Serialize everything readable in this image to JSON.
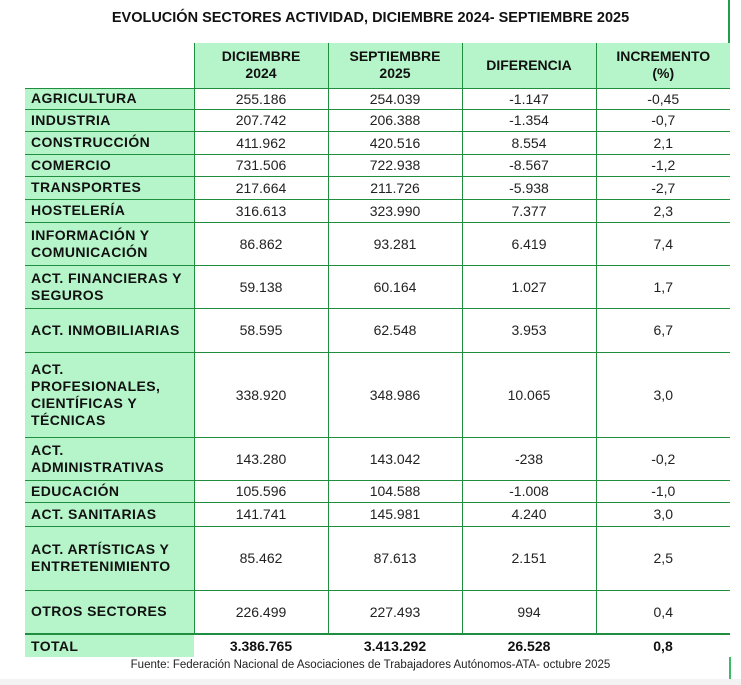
{
  "title": "EVOLUCIÓN SECTORES ACTIVIDAD, DICIEMBRE 2024- SEPTIEMBRE 2025",
  "table": {
    "headers": [
      "",
      "DICIEMBRE 2024",
      "SEPTIEMBRE 2025",
      "DIFERENCIA",
      "INCREMENTO (%)"
    ],
    "header_lines": [
      [
        ""
      ],
      [
        "DICIEMBRE",
        "2024"
      ],
      [
        "SEPTIEMBRE",
        "2025"
      ],
      [
        "DIFERENCIA"
      ],
      [
        "INCREMENTO",
        "(%)"
      ]
    ],
    "rows": [
      {
        "sector": "AGRICULTURA",
        "dic_2024": "255.186",
        "sep_2025": "254.039",
        "diferencia": "-1.147",
        "incremento": "-0,45"
      },
      {
        "sector": "INDUSTRIA",
        "dic_2024": "207.742",
        "sep_2025": "206.388",
        "diferencia": "-1.354",
        "incremento": "-0,7"
      },
      {
        "sector": "CONSTRUCCIÓN",
        "dic_2024": "411.962",
        "sep_2025": "420.516",
        "diferencia": "8.554",
        "incremento": "2,1"
      },
      {
        "sector": "COMERCIO",
        "dic_2024": "731.506",
        "sep_2025": "722.938",
        "diferencia": "-8.567",
        "incremento": "-1,2"
      },
      {
        "sector": "TRANSPORTES",
        "dic_2024": "217.664",
        "sep_2025": "211.726",
        "diferencia": "-5.938",
        "incremento": "-2,7"
      },
      {
        "sector": "HOSTELERÍA",
        "dic_2024": "316.613",
        "sep_2025": "323.990",
        "diferencia": "7.377",
        "incremento": "2,3"
      },
      {
        "sector": "INFORMACIÓN Y COMUNICACIÓN",
        "dic_2024": "86.862",
        "sep_2025": "93.281",
        "diferencia": "6.419",
        "incremento": "7,4"
      },
      {
        "sector": "ACT. FINANCIERAS Y SEGUROS",
        "dic_2024": "59.138",
        "sep_2025": "60.164",
        "diferencia": "1.027",
        "incremento": "1,7"
      },
      {
        "sector": "ACT. INMOBILIARIAS",
        "dic_2024": "58.595",
        "sep_2025": "62.548",
        "diferencia": "3.953",
        "incremento": "6,7"
      },
      {
        "sector": "ACT. PROFESIONALES, CIENTÍFICAS Y TÉCNICAS",
        "dic_2024": "338.920",
        "sep_2025": "348.986",
        "diferencia": "10.065",
        "incremento": "3,0"
      },
      {
        "sector": "ACT. ADMINISTRATIVAS",
        "dic_2024": "143.280",
        "sep_2025": "143.042",
        "diferencia": "-238",
        "incremento": "-0,2"
      },
      {
        "sector": "EDUCACIÓN",
        "dic_2024": "105.596",
        "sep_2025": "104.588",
        "diferencia": "-1.008",
        "incremento": "-1,0"
      },
      {
        "sector": "ACT. SANITARIAS",
        "dic_2024": "141.741",
        "sep_2025": "145.981",
        "diferencia": "4.240",
        "incremento": "3,0"
      },
      {
        "sector": "ACT. ARTÍSTICAS Y ENTRETENIMIENTO",
        "dic_2024": "85.462",
        "sep_2025": "87.613",
        "diferencia": "2.151",
        "incremento": "2,5"
      },
      {
        "sector": "OTROS SECTORES",
        "dic_2024": "226.499",
        "sep_2025": "227.493",
        "diferencia": "994",
        "incremento": "0,4"
      }
    ],
    "total": {
      "sector": "TOTAL",
      "dic_2024": "3.386.765",
      "sep_2025": "3.413.292",
      "diferencia": "26.528",
      "incremento": "0,8"
    }
  },
  "footer": "Fuente: Federación Nacional de Asociaciones de Trabajadores Autónomos-ATA- octubre 2025",
  "colors": {
    "header_fill": "#b6f5c9",
    "grid_line": "#1f8f3f"
  }
}
